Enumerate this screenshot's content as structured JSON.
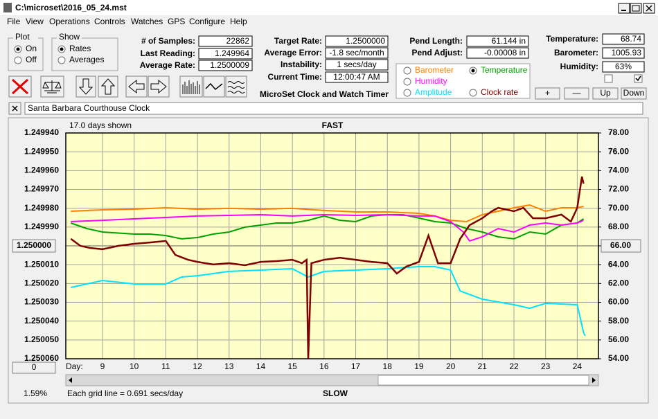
{
  "window": {
    "title": "C:\\microset\\2016_05_24.mst"
  },
  "menu": [
    "File",
    "View",
    "Operations",
    "Controls",
    "Watches",
    "GPS",
    "Configure",
    "Help"
  ],
  "plot_group": {
    "title": "Plot",
    "options": [
      "On",
      "Off"
    ],
    "selected": 0
  },
  "show_group": {
    "title": "Show",
    "options": [
      "Rates",
      "Averages"
    ],
    "selected": 0
  },
  "fields": [
    {
      "label": "# of Samples:",
      "value": "22862"
    },
    {
      "label": "Last Reading:",
      "value": "1.249964"
    },
    {
      "label": "Average Rate:",
      "value": "1.2500009"
    },
    {
      "label": "Target Rate:",
      "value": "1.2500000"
    },
    {
      "label": "Average Error:",
      "value": "-1.8 sec/month"
    },
    {
      "label": "Instability:",
      "value": "1 secs/day"
    },
    {
      "label": "Current Time:",
      "value": "12:00:47 AM"
    },
    {
      "label": "Pend Length:",
      "value": "61.144 in"
    },
    {
      "label": "Pend Adjust:",
      "value": "-0.00008 in"
    },
    {
      "label": "Temperature:",
      "value": "68.74"
    },
    {
      "label": "Barometer:",
      "value": "1005.93"
    },
    {
      "label": "Humidity:",
      "value": "63%"
    }
  ],
  "checkboxes": [
    false,
    true
  ],
  "app_name": "MicroSet Clock and Watch Timer",
  "sensor_buttons": [
    "+",
    "—",
    "Up",
    "Down"
  ],
  "clock_name": "Santa Barbara Courthouse Clock",
  "chart_data": {
    "type": "line",
    "title": "FAST",
    "bottom_label": "SLOW",
    "days_shown": "17.0 days shown",
    "grid_note": "Each grid line = 0.691 secs/day",
    "status": "1.59%",
    "xlabel": "Day:",
    "scroll_button": "0",
    "grid": true,
    "xlim": [
      7.84,
      24.67
    ],
    "xticks": [
      9,
      10,
      11,
      12,
      13,
      14,
      15,
      16,
      17,
      18,
      19,
      20,
      21,
      22,
      23,
      24
    ],
    "ylim": [
      1.24994,
      1.25006
    ],
    "y_inverted": true,
    "yticks": [
      {
        "value": 1.24994,
        "label": "1.249940"
      },
      {
        "value": 1.24995,
        "label": "1.249950"
      },
      {
        "value": 1.24996,
        "label": "1.249960"
      },
      {
        "value": 1.24997,
        "label": "1.249970"
      },
      {
        "value": 1.24998,
        "label": "1.249980"
      },
      {
        "value": 1.24999,
        "label": "1.249990"
      },
      {
        "value": 1.25,
        "label": "1.250000"
      },
      {
        "value": 1.25001,
        "label": "1.250010"
      },
      {
        "value": 1.25002,
        "label": "1.250020"
      },
      {
        "value": 1.25003,
        "label": "1.250030"
      },
      {
        "value": 1.25004,
        "label": "1.250040"
      },
      {
        "value": 1.25005,
        "label": "1.250050"
      },
      {
        "value": 1.25006,
        "label": "1.250060"
      }
    ],
    "y2lim": [
      54,
      78
    ],
    "y2ticks": [
      {
        "value": 78,
        "label": "78.00"
      },
      {
        "value": 76,
        "label": "76.00"
      },
      {
        "value": 74,
        "label": "74.00"
      },
      {
        "value": 72,
        "label": "72.00"
      },
      {
        "value": 70,
        "label": "70.00"
      },
      {
        "value": 68,
        "label": "68.00"
      },
      {
        "value": 66,
        "label": "66.00"
      },
      {
        "value": 64,
        "label": "64.00"
      },
      {
        "value": 62,
        "label": "62.00"
      },
      {
        "value": 60,
        "label": "60.00"
      },
      {
        "value": 58,
        "label": "58.00"
      },
      {
        "value": 56,
        "label": "56.00"
      },
      {
        "value": 54,
        "label": "54.00"
      }
    ],
    "series": [
      {
        "name": "Barometer",
        "color": "#ff8000",
        "axis": "y2",
        "x": [
          8.0,
          9,
          10,
          11,
          12,
          13,
          14,
          15,
          16,
          17,
          18,
          19,
          19.5,
          20,
          20.5,
          21,
          21.5,
          22,
          22.5,
          23,
          23.5,
          24,
          24.2
        ],
        "values": [
          69.68,
          69.83,
          69.9,
          70.05,
          69.9,
          69.98,
          69.9,
          69.98,
          69.76,
          69.61,
          69.61,
          69.46,
          69.17,
          68.72,
          68.58,
          69.31,
          69.68,
          70.05,
          70.34,
          69.68,
          70.05,
          70.05,
          70.2
        ]
      },
      {
        "name": "Temperature",
        "color": "#00a000",
        "axis": "y2",
        "checked": true,
        "x": [
          8.0,
          8.5,
          9,
          10,
          10.5,
          11,
          11.5,
          12,
          12.5,
          13,
          13.5,
          14,
          14.5,
          15,
          15.5,
          16,
          16.5,
          17,
          17.5,
          18,
          18.5,
          19,
          19.5,
          20,
          20.5,
          21,
          21.5,
          22,
          22.5,
          23,
          23.5,
          24,
          24.2
        ],
        "values": [
          68.43,
          67.84,
          67.47,
          67.25,
          67.25,
          67.1,
          66.74,
          66.88,
          67.25,
          67.47,
          67.99,
          68.21,
          68.43,
          68.43,
          68.72,
          69.17,
          68.72,
          68.58,
          69.17,
          69.31,
          69.31,
          68.95,
          68.58,
          68.43,
          67.84,
          67.47,
          66.96,
          66.74,
          67.47,
          67.25,
          68.21,
          68.43,
          68.87
        ]
      },
      {
        "name": "Humidity",
        "color": "#ff00ff",
        "axis": "y2",
        "x": [
          8.0,
          9,
          10,
          11,
          12,
          13,
          14,
          15,
          16,
          17,
          18,
          19,
          19.5,
          20,
          20.4,
          20.6,
          21,
          21.5,
          22,
          22.5,
          23,
          23.5,
          24,
          24.2
        ],
        "values": [
          68.58,
          68.72,
          68.87,
          69.02,
          69.17,
          69.24,
          69.31,
          69.17,
          69.31,
          69.24,
          69.31,
          69.17,
          69.17,
          68.58,
          67.47,
          66.52,
          66.96,
          67.84,
          67.47,
          68.21,
          68.43,
          68.21,
          68.43,
          68.72
        ]
      },
      {
        "name": "Amplitude",
        "color": "#00e0ff",
        "axis": "y2",
        "x": [
          8.0,
          8.5,
          9,
          10,
          11,
          11.5,
          12,
          13,
          14,
          15,
          15.5,
          16,
          17,
          18,
          19,
          19.5,
          20,
          20.3,
          21,
          22,
          22.5,
          23,
          24,
          24.2,
          24.25
        ],
        "values": [
          61.58,
          61.95,
          62.32,
          61.95,
          61.95,
          62.69,
          62.83,
          63.28,
          63.42,
          63.57,
          62.69,
          63.28,
          63.42,
          63.57,
          63.79,
          63.79,
          63.42,
          61.21,
          60.33,
          59.74,
          59.37,
          59.89,
          59.74,
          56.8,
          56.43
        ]
      },
      {
        "name": "Clock rate",
        "color": "#800000",
        "axis": "y",
        "x": [
          8.0,
          8.3,
          8.6,
          9,
          9.5,
          10,
          10.5,
          11,
          11.3,
          11.7,
          12,
          12.5,
          13,
          13.5,
          14,
          14.5,
          15,
          15.3,
          15.45,
          15.5,
          15.6,
          16,
          16.5,
          17,
          17.5,
          18,
          18.3,
          18.6,
          19,
          19.3,
          19.6,
          20,
          20.3,
          20.6,
          21,
          21.3,
          21.5,
          22,
          22.3,
          22.6,
          23,
          23.5,
          23.8,
          24.0,
          24.15,
          24.2
        ],
        "values": [
          1.2499963,
          1.25,
          1.2500011,
          1.2500018,
          1.25,
          1.2499989,
          1.2499982,
          1.2499974,
          1.2500048,
          1.2500074,
          1.2500085,
          1.2500099,
          1.2500092,
          1.2500103,
          1.2500085,
          1.2500081,
          1.2500074,
          1.2500092,
          1.2500074,
          1.25006,
          1.2500092,
          1.2500074,
          1.2500063,
          1.2500074,
          1.2500085,
          1.2500092,
          1.2500147,
          1.250011,
          1.2500085,
          1.2499945,
          1.2500092,
          1.2500092,
          1.2499963,
          1.249989,
          1.2499853,
          1.2499816,
          1.2499798,
          1.2499816,
          1.2499798,
          1.2499853,
          1.2499853,
          1.2499834,
          1.2499871,
          1.2499798,
          1.2499632,
          1.2499669
        ]
      }
    ]
  }
}
